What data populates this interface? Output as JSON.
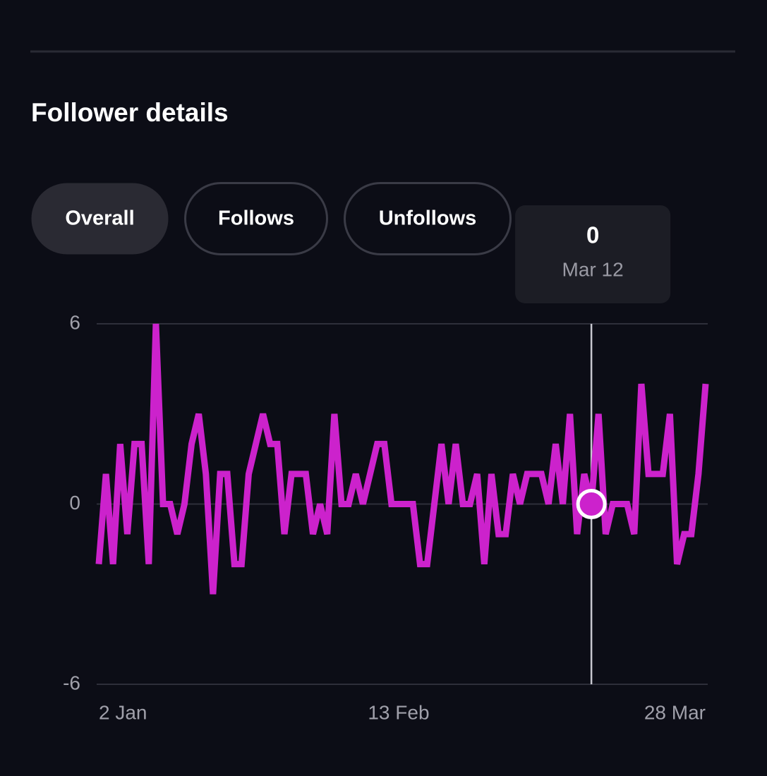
{
  "header": {
    "title": "Follower details"
  },
  "tabs": [
    {
      "label": "Overall",
      "selected": true
    },
    {
      "label": "Follows",
      "selected": false
    },
    {
      "label": "Unfollows",
      "selected": false
    }
  ],
  "chart_data": {
    "type": "line",
    "categories": [
      "2 Jan",
      null,
      null,
      null,
      null,
      null,
      null,
      null,
      null,
      null,
      null,
      null,
      null,
      null,
      null,
      null,
      null,
      null,
      null,
      null,
      null,
      null,
      null,
      null,
      null,
      null,
      null,
      null,
      null,
      null,
      null,
      null,
      null,
      null,
      null,
      null,
      null,
      null,
      null,
      null,
      null,
      null,
      "13 Feb",
      null,
      null,
      null,
      null,
      null,
      null,
      null,
      null,
      null,
      null,
      null,
      null,
      null,
      null,
      null,
      null,
      null,
      null,
      null,
      null,
      null,
      null,
      null,
      null,
      null,
      null,
      null,
      null,
      null,
      null,
      null,
      null,
      null,
      null,
      null,
      null,
      null,
      null,
      null,
      null,
      null,
      null,
      "28 Mar"
    ],
    "series": [
      {
        "name": "Overall",
        "color": "#cc22cc",
        "values": [
          -2,
          1,
          -2,
          2,
          -1,
          2,
          2,
          -2,
          6,
          0,
          0,
          -1,
          0,
          2,
          3,
          1,
          -3,
          1,
          1,
          -2,
          -2,
          1,
          2,
          3,
          2,
          2,
          -1,
          1,
          1,
          1,
          -1,
          0,
          -1,
          3,
          0,
          0,
          1,
          0,
          1,
          2,
          2,
          0,
          0,
          0,
          0,
          -2,
          -2,
          0,
          2,
          0,
          2,
          0,
          0,
          1,
          -2,
          1,
          -1,
          -1,
          1,
          0,
          1,
          1,
          1,
          0,
          2,
          0,
          3,
          -1,
          1,
          0,
          3,
          -1,
          0,
          0,
          0,
          -1,
          4,
          1,
          1,
          1,
          3,
          -2,
          -1,
          -1,
          1,
          4
        ]
      }
    ],
    "ylim": [
      -6,
      6
    ],
    "yticks": [
      -6,
      0,
      6
    ],
    "grid": true,
    "tooltip": {
      "index": 69,
      "value": 0,
      "label": "Mar 12"
    }
  }
}
